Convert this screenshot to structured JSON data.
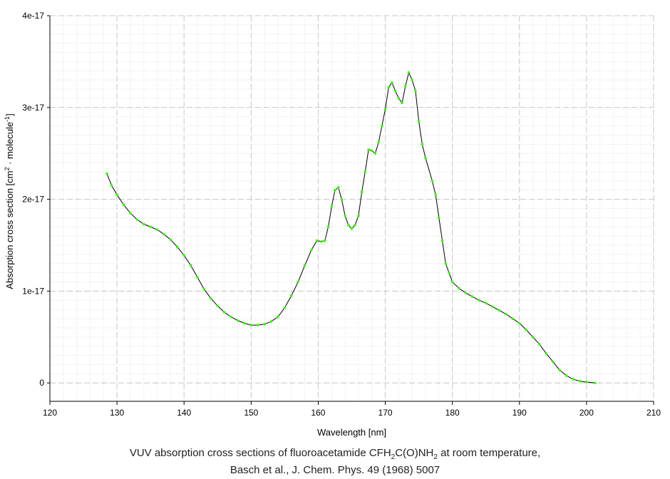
{
  "caption": {
    "line1_prefix": "VUV absorption cross sections of fluoroacetamide CFH",
    "line1_sub1": "2",
    "line1_mid": "C(O)NH",
    "line1_sub2": "2",
    "line1_suffix": " at room temperature,",
    "line2": "Basch et al., J. Chem. Phys. 49 (1968) 5007"
  },
  "chart_data": {
    "type": "line",
    "xlabel": "Wavelength [nm]",
    "ylabel_prefix": "Absorption cross section [cm",
    "ylabel_sup1": "2",
    "ylabel_mid": " · molecule",
    "ylabel_sup2": "-1",
    "ylabel_suffix": "]",
    "xlim": [
      120,
      210
    ],
    "ylim": [
      -2e-18,
      4e-17
    ],
    "x_ticks": [
      120,
      130,
      140,
      150,
      160,
      170,
      180,
      190,
      200,
      210
    ],
    "y_ticks": [
      {
        "value": 0,
        "label": "0"
      },
      {
        "value": 1e-17,
        "label": "1e-17"
      },
      {
        "value": 2e-17,
        "label": "2e-17"
      },
      {
        "value": 3e-17,
        "label": "3e-17"
      },
      {
        "value": 4e-17,
        "label": "4e-17"
      }
    ],
    "grid": true,
    "line_color": "#000000",
    "marker_color": "#33ff00",
    "grid_color": "#c8c8c8",
    "x": [
      128.5,
      129.2,
      130.0,
      131.0,
      132.0,
      133.0,
      134.0,
      135.0,
      136.0,
      137.0,
      138.0,
      139.0,
      140.0,
      141.0,
      142.0,
      143.0,
      144.0,
      145.0,
      146.0,
      147.0,
      148.0,
      149.0,
      150.0,
      151.0,
      152.0,
      153.0,
      154.0,
      155.0,
      156.0,
      157.0,
      158.0,
      159.0,
      159.8,
      160.5,
      161.0,
      161.5,
      162.0,
      162.5,
      163.0,
      163.5,
      164.0,
      164.5,
      165.0,
      165.5,
      166.0,
      166.5,
      167.0,
      167.5,
      168.0,
      168.5,
      169.0,
      169.5,
      170.0,
      170.5,
      171.0,
      171.5,
      172.0,
      172.5,
      173.0,
      173.5,
      174.0,
      174.5,
      175.0,
      175.5,
      176.0,
      177.0,
      177.5,
      178.0,
      178.5,
      179.0,
      179.5,
      180.0,
      181.0,
      182.0,
      183.0,
      184.0,
      185.0,
      186.0,
      187.0,
      188.0,
      189.0,
      190.0,
      191.0,
      192.0,
      193.0,
      194.0,
      195.0,
      196.0,
      197.0,
      198.0,
      199.0,
      200.0,
      201.3
    ],
    "values": [
      2.28e-17,
      2.15e-17,
      2.05e-17,
      1.94e-17,
      1.85e-17,
      1.78e-17,
      1.73e-17,
      1.7e-17,
      1.67e-17,
      1.62e-17,
      1.56e-17,
      1.48e-17,
      1.39e-17,
      1.28e-17,
      1.15e-17,
      1.02e-17,
      9.2e-18,
      8.4e-18,
      7.7e-18,
      7.2e-18,
      6.8e-18,
      6.5e-18,
      6.3e-18,
      6.3e-18,
      6.4e-18,
      6.7e-18,
      7.2e-18,
      8.2e-18,
      9.5e-18,
      1.1e-17,
      1.28e-17,
      1.45e-17,
      1.55e-17,
      1.54e-17,
      1.55e-17,
      1.7e-17,
      1.92e-17,
      2.1e-17,
      2.13e-17,
      2e-17,
      1.82e-17,
      1.72e-17,
      1.68e-17,
      1.72e-17,
      1.82e-17,
      2.08e-17,
      2.3e-17,
      2.54e-17,
      2.53e-17,
      2.5e-17,
      2.62e-17,
      2.8e-17,
      2.98e-17,
      3.22e-17,
      3.27e-17,
      3.18e-17,
      3.1e-17,
      3.05e-17,
      3.23e-17,
      3.38e-17,
      3.3e-17,
      3.18e-17,
      2.85e-17,
      2.6e-17,
      2.45e-17,
      2.2e-17,
      2.05e-17,
      1.8e-17,
      1.55e-17,
      1.3e-17,
      1.2e-17,
      1.1e-17,
      1.03e-17,
      9.8e-18,
      9.4e-18,
      9e-18,
      8.7e-18,
      8.3e-18,
      7.9e-18,
      7.5e-18,
      7e-18,
      6.5e-18,
      5.8e-18,
      5e-18,
      4.2e-18,
      3.2e-18,
      2.3e-18,
      1.4e-18,
      8e-19,
      4e-19,
      2e-19,
      1e-19,
      0
    ]
  }
}
